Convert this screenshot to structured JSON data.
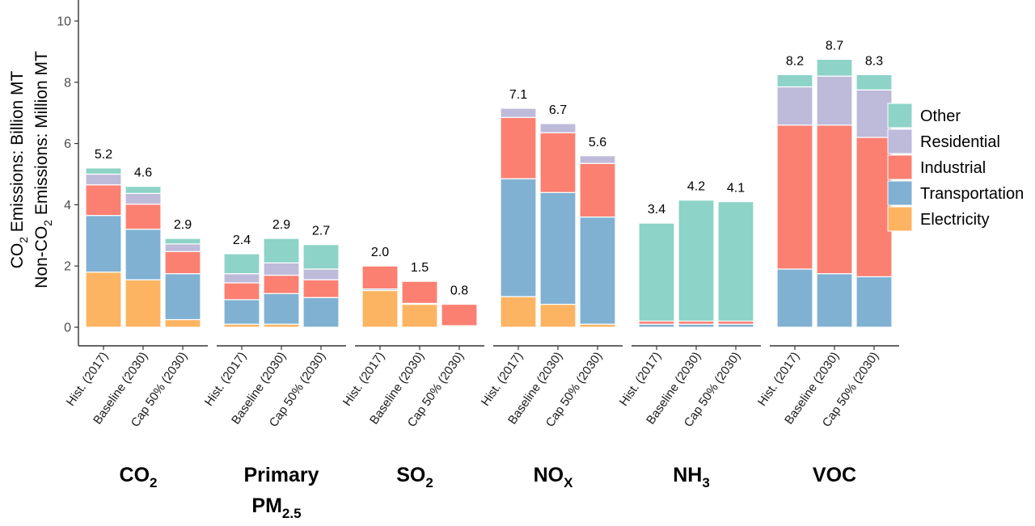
{
  "chart_data": {
    "type": "bar",
    "stacked": true,
    "ylabel_line1": [
      "CO",
      "2",
      " Emissions: Billion MT"
    ],
    "ylabel_line2": [
      "Non-CO",
      "2",
      " Emissions: Million MT"
    ],
    "ylim": [
      0,
      10
    ],
    "yticks": [
      0,
      2,
      4,
      6,
      8,
      10
    ],
    "grid": false,
    "legend_position": "right",
    "series_order_bottom_to_top": [
      "Electricity",
      "Transportation",
      "Industrial",
      "Residential",
      "Other"
    ],
    "legend": [
      {
        "name": "Other",
        "color": "#8dd3c7"
      },
      {
        "name": "Residential",
        "color": "#bebada"
      },
      {
        "name": "Industrial",
        "color": "#fb8072"
      },
      {
        "name": "Transportation",
        "color": "#80b1d3"
      },
      {
        "name": "Electricity",
        "color": "#fdb462"
      }
    ],
    "scenarios": [
      "Hist. (2017)",
      "Baseline (2030)",
      "Cap 50% (2030)"
    ],
    "groups": [
      {
        "name": [
          [
            "CO",
            "n"
          ],
          [
            "2",
            "sub"
          ]
        ],
        "bars": [
          {
            "total": "5.2",
            "values": [
              1.8,
              1.85,
              1.0,
              0.35,
              0.2
            ]
          },
          {
            "total": "4.6",
            "values": [
              1.55,
              1.65,
              0.82,
              0.35,
              0.23
            ]
          },
          {
            "total": "2.9",
            "values": [
              0.25,
              1.5,
              0.72,
              0.25,
              0.18
            ]
          }
        ]
      },
      {
        "name": [
          [
            "Primary",
            "l1"
          ],
          [
            "PM",
            "l2"
          ],
          [
            "2.5",
            "sub"
          ]
        ],
        "bars": [
          {
            "total": "2.4",
            "values": [
              0.1,
              0.8,
              0.55,
              0.3,
              0.65
            ]
          },
          {
            "total": "2.9",
            "values": [
              0.1,
              1.0,
              0.6,
              0.4,
              0.8
            ]
          },
          {
            "total": "2.7",
            "values": [
              0.0,
              0.97,
              0.58,
              0.35,
              0.8
            ]
          }
        ]
      },
      {
        "name": [
          [
            "SO",
            "n"
          ],
          [
            "2",
            "sub"
          ]
        ],
        "bars": [
          {
            "total": "2.0",
            "values": [
              1.2,
              0.05,
              0.75,
              0.0,
              0.0
            ]
          },
          {
            "total": "1.5",
            "values": [
              0.75,
              0.03,
              0.72,
              0.0,
              0.0
            ]
          },
          {
            "total": "0.8",
            "values": [
              0.03,
              0.02,
              0.7,
              0.0,
              0.0
            ]
          }
        ]
      },
      {
        "name": [
          [
            "NO",
            "n"
          ],
          [
            "X",
            "sub"
          ]
        ],
        "bars": [
          {
            "total": "7.1",
            "values": [
              1.0,
              3.85,
              2.0,
              0.3,
              0.0
            ]
          },
          {
            "total": "6.7",
            "values": [
              0.75,
              3.65,
              1.95,
              0.3,
              0.0
            ]
          },
          {
            "total": "5.6",
            "values": [
              0.1,
              3.5,
              1.75,
              0.25,
              0.0
            ]
          }
        ]
      },
      {
        "name": [
          [
            "NH",
            "n"
          ],
          [
            "3",
            "sub"
          ]
        ],
        "bars": [
          {
            "total": "3.4",
            "values": [
              0.0,
              0.1,
              0.1,
              0.0,
              3.2
            ]
          },
          {
            "total": "4.2",
            "values": [
              0.0,
              0.1,
              0.1,
              0.0,
              3.95
            ]
          },
          {
            "total": "4.1",
            "values": [
              0.0,
              0.1,
              0.1,
              0.0,
              3.9
            ]
          }
        ]
      },
      {
        "name": [
          [
            "VOC",
            "n"
          ]
        ],
        "bars": [
          {
            "total": "8.2",
            "values": [
              0.0,
              1.9,
              4.7,
              1.25,
              0.4
            ]
          },
          {
            "total": "8.7",
            "values": [
              0.0,
              1.75,
              4.85,
              1.6,
              0.55
            ]
          },
          {
            "total": "8.3",
            "values": [
              0.0,
              1.65,
              4.55,
              1.55,
              0.5
            ]
          }
        ]
      }
    ]
  }
}
